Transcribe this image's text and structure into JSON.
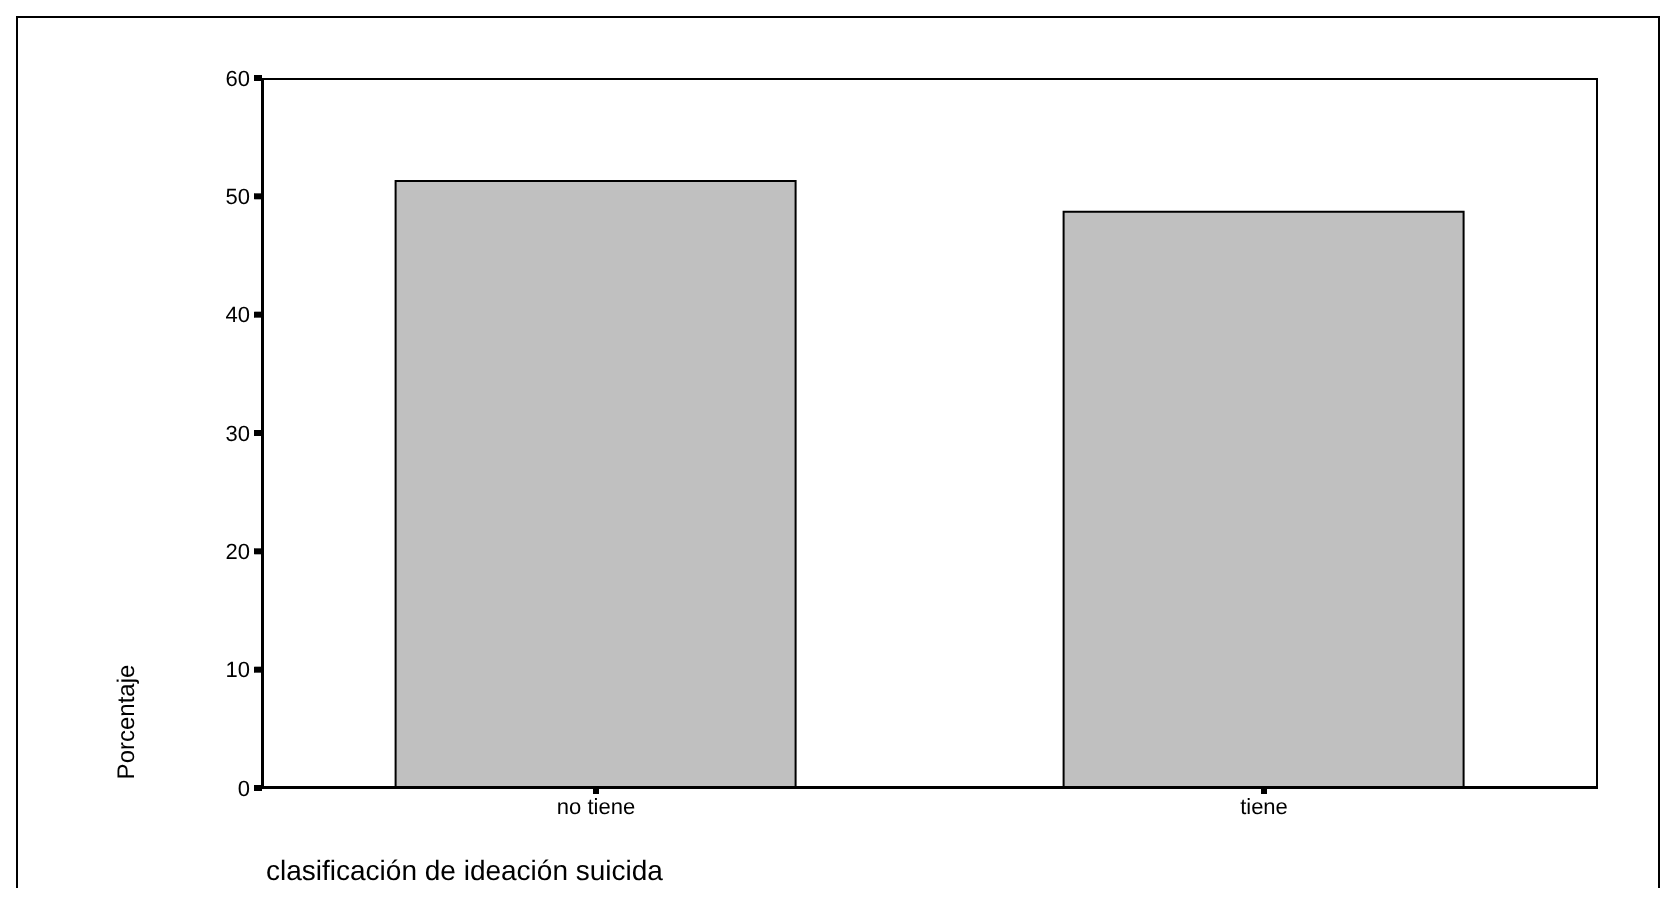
{
  "chart_data": {
    "type": "bar",
    "xlabel": "clasificación de ideación suicida",
    "ylabel": "Porcentaje",
    "categories": [
      "no tiene",
      "tiene"
    ],
    "values": [
      51.3,
      48.7
    ],
    "color": "#c0c0c0",
    "ylim": [
      0,
      60
    ],
    "yticks": [
      0,
      10,
      20,
      30,
      40,
      50,
      60
    ],
    "grid": false,
    "legend": false
  }
}
